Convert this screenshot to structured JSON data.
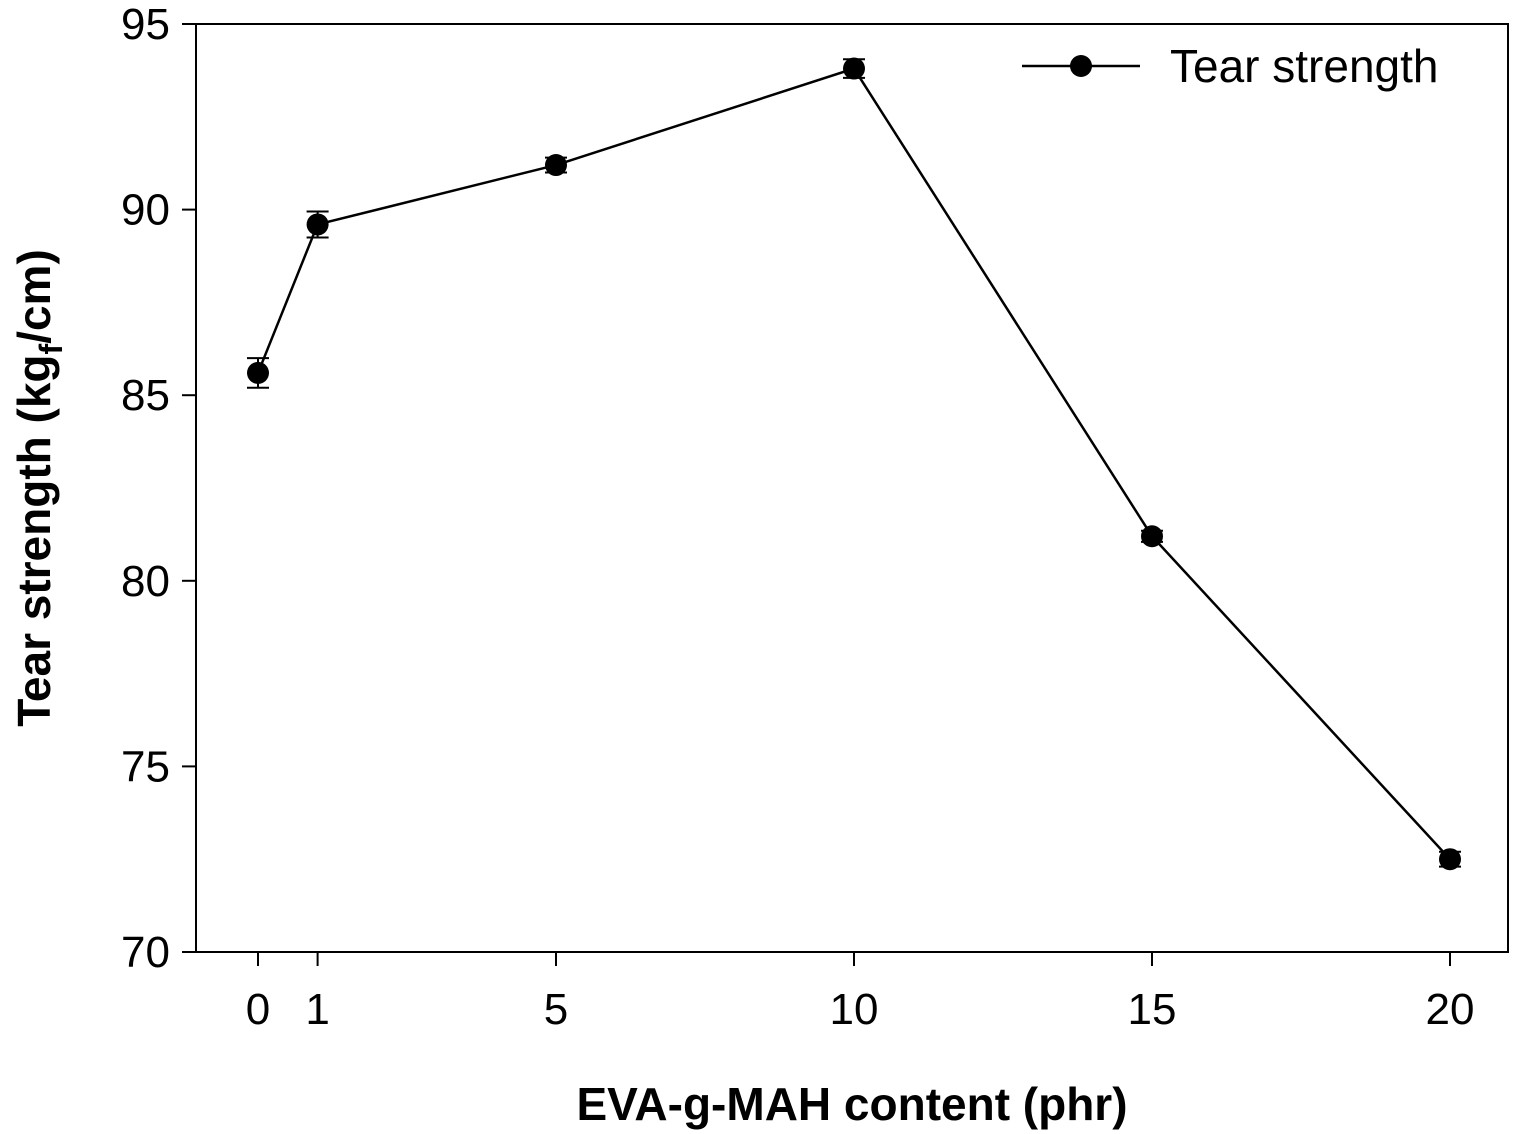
{
  "chart_data": {
    "type": "line",
    "xlabel": "EVA-g-MAH content (phr)",
    "ylabel_main": "Tear strength (kg",
    "ylabel_sub": "f",
    "ylabel_end": "/cm)",
    "x": [
      0,
      1,
      5,
      10,
      15,
      20
    ],
    "x_ticks": [
      "0",
      "1",
      "5",
      "10",
      "15",
      "20"
    ],
    "y_ticks": [
      "70",
      "75",
      "80",
      "85",
      "90",
      "95"
    ],
    "ylim": [
      70,
      95
    ],
    "grid": false,
    "legend_position": "top-right",
    "series": [
      {
        "name": "Tear strength",
        "values": [
          85.6,
          89.6,
          91.2,
          93.8,
          81.2,
          72.5
        ],
        "errors": [
          0.4,
          0.35,
          0.2,
          0.25,
          0.15,
          0.2
        ],
        "color": "#000000",
        "marker": "filled-circle"
      }
    ]
  }
}
